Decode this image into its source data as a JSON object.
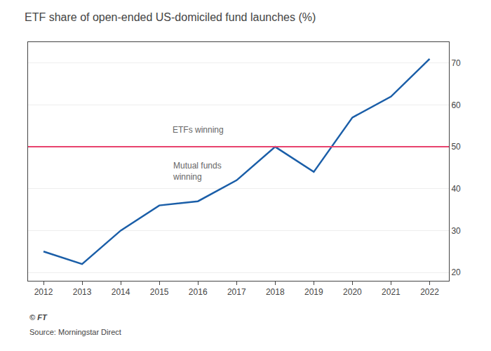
{
  "chart_data": {
    "type": "line",
    "title": "ETF share of open-ended US-domiciled fund launches (%)",
    "x": [
      2012,
      2013,
      2014,
      2015,
      2016,
      2017,
      2018,
      2019,
      2020,
      2021,
      2022
    ],
    "values": [
      25,
      22,
      30,
      36,
      37,
      42,
      50,
      44,
      57,
      62,
      71
    ],
    "color": "#1a5ea8",
    "threshold": {
      "value": 50,
      "color": "#e8436e"
    },
    "xlim": [
      2011.6,
      2022.5
    ],
    "xticks": [
      2012,
      2013,
      2014,
      2015,
      2016,
      2017,
      2018,
      2019,
      2020,
      2021,
      2022
    ],
    "ylim": [
      18,
      75
    ],
    "yticks": [
      20,
      30,
      40,
      50,
      60,
      70
    ],
    "grid": true,
    "annotations": [
      {
        "text": "ETFs winning",
        "x": 2015.3,
        "y": 52.5
      },
      {
        "text": "Mutual funds\nwinning",
        "x": 2015.3,
        "y": 47.0
      }
    ],
    "source": "Source: Morningstar Direct",
    "credit": "© FT"
  }
}
